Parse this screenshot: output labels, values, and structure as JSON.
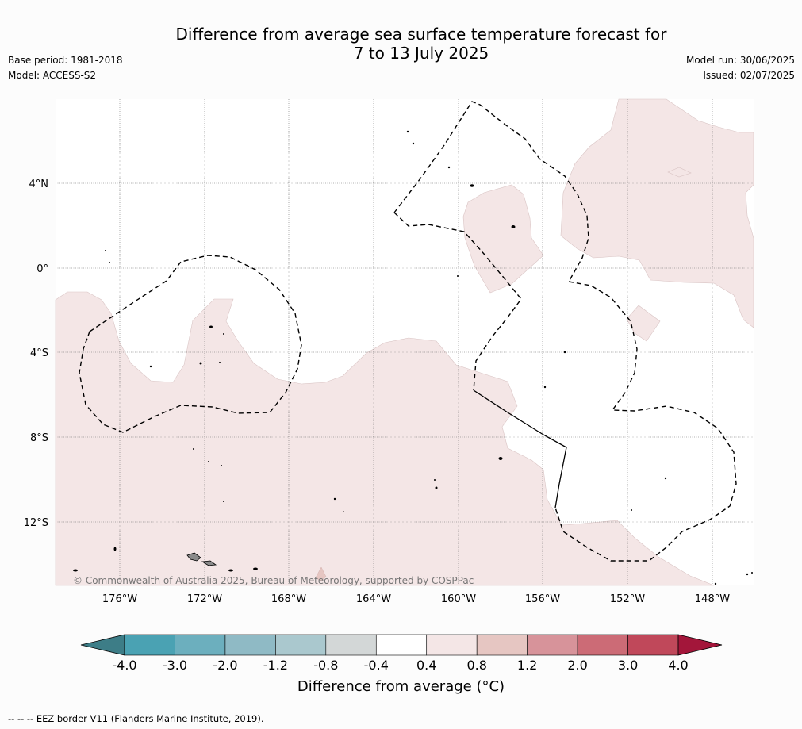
{
  "header": {
    "title_line1": "Difference from average sea surface temperature forecast for",
    "title_line2": "7 to 13 July 2025",
    "base_period": "Base period: 1981-2018",
    "model": "Model: ACCESS-S2",
    "model_run": "Model run: 30/06/2025",
    "issued": "Issued: 02/07/2025"
  },
  "map": {
    "lat_labels": [
      "4°N",
      "0°",
      "4°S",
      "8°S",
      "12°S"
    ],
    "lon_labels": [
      "176°W",
      "172°W",
      "168°W",
      "164°W",
      "160°W",
      "156°W",
      "152°W",
      "148°W"
    ],
    "copyright": "© Commonwealth of Australia 2025, Bureau of Meteorology, supported by COSPPac",
    "fill_color": "#f4e6e6",
    "fill_class": "0.4 to 0.8"
  },
  "colorbar": {
    "ticks": [
      "-4.0",
      "-3.0",
      "-2.0",
      "-1.2",
      "-0.8",
      "-0.4",
      "0.4",
      "0.8",
      "1.2",
      "2.0",
      "3.0",
      "4.0"
    ],
    "colors": [
      "#3d7d87",
      "#4aa2b3",
      "#6cafbe",
      "#8fbac5",
      "#aac8ce",
      "#d3d7d7",
      "#ffffff",
      "#f4e6e6",
      "#e6c6c2",
      "#d7939a",
      "#cc6b76",
      "#c0485a",
      "#a3163a"
    ],
    "label": "Difference from average (°C)"
  },
  "footer": {
    "legend_text": "--  --  -- EEZ border V11 (Flanders Marine Institute, 2019)."
  }
}
